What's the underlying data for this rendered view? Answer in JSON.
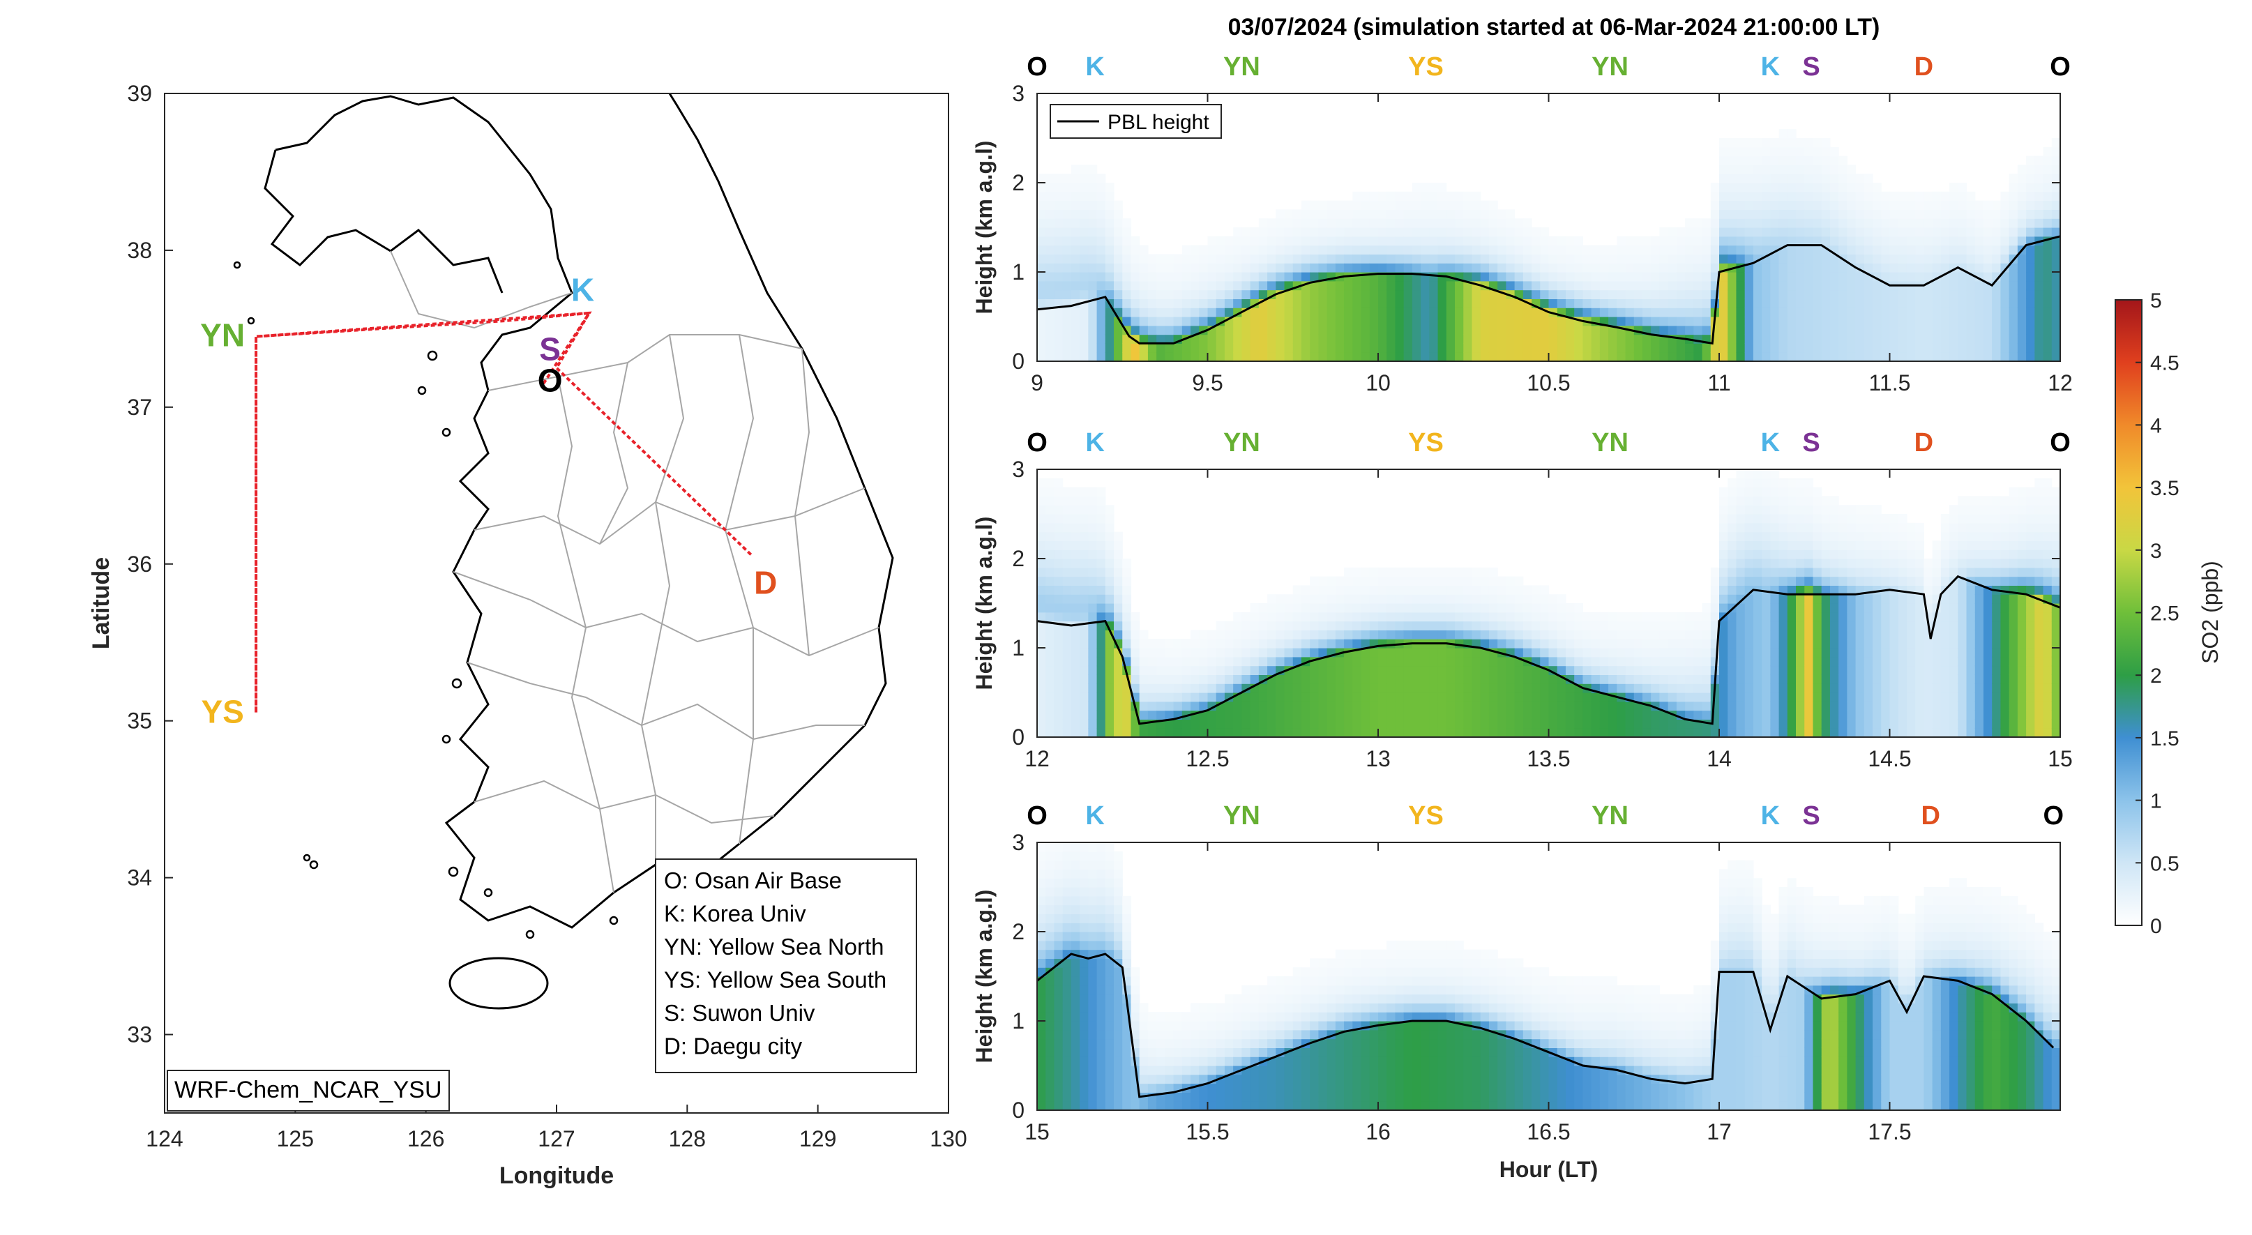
{
  "figure": {
    "title": "03/07/2024 (simulation started at 06-Mar-2024 21:00:00 LT)",
    "model_label": "WRF-Chem_NCAR_YSU"
  },
  "colors": {
    "O": "#000000",
    "K": "#4db3e6",
    "YN": "#66b032",
    "YS": "#f2b51d",
    "S": "#7b3294",
    "D": "#e0501e",
    "route": "#e8222a",
    "pbl": "#000000"
  },
  "map": {
    "xlabel": "Longitude",
    "ylabel": "Latitude",
    "xlim": [
      124,
      130
    ],
    "ylim": [
      32.5,
      39
    ],
    "xticks": [
      "124",
      "125",
      "126",
      "127",
      "128",
      "129",
      "130"
    ],
    "yticks": [
      "33",
      "34",
      "35",
      "36",
      "37",
      "38",
      "39"
    ],
    "stations": [
      {
        "id": "YN",
        "label": "YN",
        "lon": 124.7,
        "lat": 37.45
      },
      {
        "id": "YS",
        "label": "YS",
        "lon": 124.7,
        "lat": 35.05
      },
      {
        "id": "K",
        "label": "K",
        "lon": 127.2,
        "lat": 37.65
      },
      {
        "id": "S",
        "label": "S",
        "lon": 126.95,
        "lat": 37.3
      },
      {
        "id": "O",
        "label": "O",
        "lon": 126.95,
        "lat": 37.1
      },
      {
        "id": "D",
        "label": "D",
        "lon": 128.6,
        "lat": 35.9
      }
    ],
    "route": [
      {
        "lon": 126.9,
        "lat": 37.15
      },
      {
        "lon": 127.25,
        "lat": 37.6
      },
      {
        "lon": 126.4,
        "lat": 37.55
      },
      {
        "lon": 124.7,
        "lat": 37.45
      },
      {
        "lon": 124.7,
        "lat": 35.05
      },
      {
        "lon": 124.7,
        "lat": 37.45
      },
      {
        "lon": 126.6,
        "lat": 37.55
      },
      {
        "lon": 127.25,
        "lat": 37.6
      },
      {
        "lon": 127.0,
        "lat": 37.25
      },
      {
        "lon": 128.5,
        "lat": 36.05
      }
    ],
    "legend": [
      "O: Osan Air Base",
      "K: Korea Univ",
      "YN: Yellow Sea North",
      "YS: Yellow Sea South",
      "S: Suwon Univ",
      "D: Daegu city"
    ]
  },
  "colorbar": {
    "label": "SO2 (ppb)",
    "ticks": [
      "0",
      "0.5",
      "1",
      "1.5",
      "2",
      "2.5",
      "3",
      "3.5",
      "4",
      "4.5",
      "5"
    ],
    "range": [
      0,
      5
    ],
    "stops": [
      "#ffffff",
      "#cfe6f6",
      "#8cc3ea",
      "#3f8fd2",
      "#2e9e46",
      "#6fbf3a",
      "#c9d845",
      "#f2c43a",
      "#f08a2a",
      "#e0401e",
      "#a3161a"
    ]
  },
  "chart_data": {
    "type": "heatmap",
    "legend_entry": "PBL height",
    "xlabel": "Hour (LT)",
    "ylabel": "Height (km a.g.l)",
    "ylim": [
      0,
      3
    ],
    "yticks": [
      "0",
      "1",
      "2",
      "3"
    ],
    "panels": [
      {
        "xlim": [
          9,
          12
        ],
        "xticks": [
          "9",
          "9.5",
          "10",
          "10.5",
          "11",
          "11.5",
          "12"
        ],
        "stations": [
          {
            "id": "O",
            "label": "O",
            "x": 9.0
          },
          {
            "id": "K",
            "label": "K",
            "x": 9.17
          },
          {
            "id": "YN",
            "label": "YN",
            "x": 9.6
          },
          {
            "id": "YS",
            "label": "YS",
            "x": 10.14
          },
          {
            "id": "YN",
            "label": "YN",
            "x": 10.68
          },
          {
            "id": "K",
            "label": "K",
            "x": 11.15
          },
          {
            "id": "S",
            "label": "S",
            "x": 11.27
          },
          {
            "id": "D",
            "label": "D",
            "x": 11.6
          },
          {
            "id": "O",
            "label": "O",
            "x": 12.0
          }
        ],
        "pbl": {
          "x": [
            9.0,
            9.1,
            9.2,
            9.27,
            9.3,
            9.4,
            9.5,
            9.6,
            9.7,
            9.8,
            9.9,
            10.0,
            10.1,
            10.2,
            10.3,
            10.4,
            10.5,
            10.6,
            10.7,
            10.8,
            10.9,
            10.98,
            11.0,
            11.1,
            11.2,
            11.3,
            11.4,
            11.5,
            11.6,
            11.7,
            11.8,
            11.9,
            12.0
          ],
          "y": [
            0.58,
            0.62,
            0.72,
            0.28,
            0.2,
            0.2,
            0.35,
            0.55,
            0.75,
            0.88,
            0.95,
            0.98,
            0.98,
            0.95,
            0.85,
            0.72,
            0.55,
            0.45,
            0.38,
            0.3,
            0.25,
            0.2,
            1.0,
            1.1,
            1.3,
            1.3,
            1.05,
            0.85,
            0.85,
            1.05,
            0.85,
            1.3,
            1.4
          ]
        },
        "so2": {
          "x": [
            9.0,
            9.15,
            9.2,
            9.28,
            9.35,
            9.5,
            9.65,
            9.8,
            10.0,
            10.15,
            10.3,
            10.5,
            10.65,
            10.8,
            10.95,
            11.0,
            11.1,
            11.2,
            11.4,
            11.6,
            11.8,
            11.95,
            12.0
          ],
          "surface": [
            0.2,
            0.3,
            1.4,
            3.6,
            2.3,
            2.6,
            3.3,
            2.7,
            2.3,
            1.6,
            3.2,
            3.3,
            2.8,
            2.4,
            2.0,
            3.6,
            1.0,
            0.7,
            0.6,
            0.5,
            0.6,
            1.8,
            1.6
          ],
          "upper": [
            1.3,
            1.3,
            1.0,
            0.7,
            0.5,
            0.5,
            0.4,
            0.4,
            0.4,
            0.5,
            0.5,
            0.4,
            0.4,
            0.6,
            1.0,
            1.2,
            1.0,
            0.8,
            0.6,
            0.5,
            0.4,
            0.5,
            0.6
          ]
        }
      },
      {
        "xlim": [
          12,
          15
        ],
        "xticks": [
          "12",
          "12.5",
          "13",
          "13.5",
          "14",
          "14.5",
          "15"
        ],
        "stations": [
          {
            "id": "O",
            "label": "O",
            "x": 12.0
          },
          {
            "id": "K",
            "label": "K",
            "x": 12.17
          },
          {
            "id": "YN",
            "label": "YN",
            "x": 12.6
          },
          {
            "id": "YS",
            "label": "YS",
            "x": 13.14
          },
          {
            "id": "YN",
            "label": "YN",
            "x": 13.68
          },
          {
            "id": "K",
            "label": "K",
            "x": 14.15
          },
          {
            "id": "S",
            "label": "S",
            "x": 14.27
          },
          {
            "id": "D",
            "label": "D",
            "x": 14.6
          },
          {
            "id": "O",
            "label": "O",
            "x": 15.0
          }
        ],
        "pbl": {
          "x": [
            12.0,
            12.1,
            12.2,
            12.25,
            12.3,
            12.4,
            12.5,
            12.6,
            12.7,
            12.8,
            12.9,
            13.0,
            13.1,
            13.2,
            13.3,
            13.4,
            13.5,
            13.6,
            13.7,
            13.8,
            13.9,
            13.98,
            14.0,
            14.1,
            14.2,
            14.3,
            14.4,
            14.5,
            14.6,
            14.62,
            14.65,
            14.7,
            14.8,
            14.9,
            15.0
          ],
          "y": [
            1.3,
            1.25,
            1.3,
            0.9,
            0.15,
            0.2,
            0.3,
            0.5,
            0.7,
            0.85,
            0.95,
            1.02,
            1.05,
            1.05,
            1.0,
            0.9,
            0.75,
            0.55,
            0.45,
            0.35,
            0.2,
            0.15,
            1.3,
            1.65,
            1.6,
            1.6,
            1.6,
            1.65,
            1.6,
            1.1,
            1.6,
            1.8,
            1.65,
            1.6,
            1.45
          ]
        },
        "so2": {
          "x": [
            12.0,
            12.15,
            12.22,
            12.26,
            12.3,
            12.4,
            12.6,
            12.8,
            13.0,
            13.2,
            13.4,
            13.6,
            13.8,
            13.98,
            14.05,
            14.15,
            14.22,
            14.26,
            14.3,
            14.4,
            14.5,
            14.6,
            14.7,
            14.85,
            14.95,
            15.0
          ],
          "surface": [
            0.3,
            0.5,
            2.9,
            3.2,
            2.1,
            2.0,
            2.1,
            2.3,
            2.5,
            2.5,
            2.3,
            2.1,
            1.9,
            1.8,
            1.2,
            0.9,
            2.2,
            3.5,
            2.0,
            1.0,
            0.6,
            0.4,
            0.5,
            2.2,
            3.3,
            2.4
          ],
          "upper": [
            1.5,
            1.4,
            1.0,
            0.8,
            0.5,
            0.4,
            0.4,
            0.4,
            0.4,
            0.4,
            0.4,
            0.4,
            0.5,
            0.9,
            1.2,
            1.0,
            0.8,
            0.8,
            0.6,
            0.5,
            0.4,
            0.3,
            0.4,
            0.6,
            0.9,
            1.0
          ]
        }
      },
      {
        "xlim": [
          15,
          18
        ],
        "xticks": [
          "15",
          "15.5",
          "16",
          "16.5",
          "17",
          "17.5"
        ],
        "stations": [
          {
            "id": "O",
            "label": "O",
            "x": 15.0
          },
          {
            "id": "K",
            "label": "K",
            "x": 15.17
          },
          {
            "id": "YN",
            "label": "YN",
            "x": 15.6
          },
          {
            "id": "YS",
            "label": "YS",
            "x": 16.14
          },
          {
            "id": "YN",
            "label": "YN",
            "x": 16.68
          },
          {
            "id": "K",
            "label": "K",
            "x": 17.15
          },
          {
            "id": "S",
            "label": "S",
            "x": 17.27
          },
          {
            "id": "D",
            "label": "D",
            "x": 17.62
          },
          {
            "id": "O",
            "label": "O",
            "x": 17.98
          }
        ],
        "pbl": {
          "x": [
            15.0,
            15.05,
            15.1,
            15.15,
            15.2,
            15.25,
            15.3,
            15.4,
            15.5,
            15.6,
            15.7,
            15.8,
            15.9,
            16.0,
            16.1,
            16.2,
            16.3,
            16.4,
            16.5,
            16.6,
            16.7,
            16.8,
            16.9,
            16.98,
            17.0,
            17.1,
            17.15,
            17.2,
            17.3,
            17.4,
            17.5,
            17.55,
            17.6,
            17.7,
            17.8,
            17.9,
            17.98
          ],
          "y": [
            1.45,
            1.6,
            1.75,
            1.7,
            1.75,
            1.6,
            0.15,
            0.2,
            0.3,
            0.45,
            0.6,
            0.75,
            0.88,
            0.95,
            1.0,
            1.0,
            0.92,
            0.8,
            0.65,
            0.5,
            0.45,
            0.35,
            0.3,
            0.35,
            1.55,
            1.55,
            0.9,
            1.5,
            1.25,
            1.3,
            1.45,
            1.1,
            1.5,
            1.45,
            1.3,
            1.0,
            0.7
          ]
        },
        "so2": {
          "x": [
            15.0,
            15.1,
            15.2,
            15.28,
            15.35,
            15.5,
            15.7,
            15.9,
            16.1,
            16.3,
            16.5,
            16.7,
            16.9,
            16.98,
            17.05,
            17.15,
            17.25,
            17.32,
            17.4,
            17.5,
            17.6,
            17.7,
            17.8,
            17.9,
            17.98
          ],
          "surface": [
            2.0,
            1.7,
            1.3,
            1.0,
            1.3,
            1.5,
            1.6,
            1.8,
            2.0,
            1.9,
            1.6,
            1.3,
            1.0,
            0.8,
            0.8,
            0.7,
            0.8,
            3.0,
            2.0,
            0.8,
            0.8,
            1.6,
            2.2,
            1.9,
            1.4
          ],
          "upper": [
            1.2,
            1.1,
            1.0,
            0.6,
            0.4,
            0.4,
            0.4,
            0.4,
            0.4,
            0.4,
            0.4,
            0.5,
            0.5,
            0.6,
            0.8,
            0.7,
            0.6,
            0.6,
            0.5,
            0.5,
            0.5,
            0.6,
            0.7,
            0.8,
            0.8
          ]
        }
      }
    ]
  }
}
